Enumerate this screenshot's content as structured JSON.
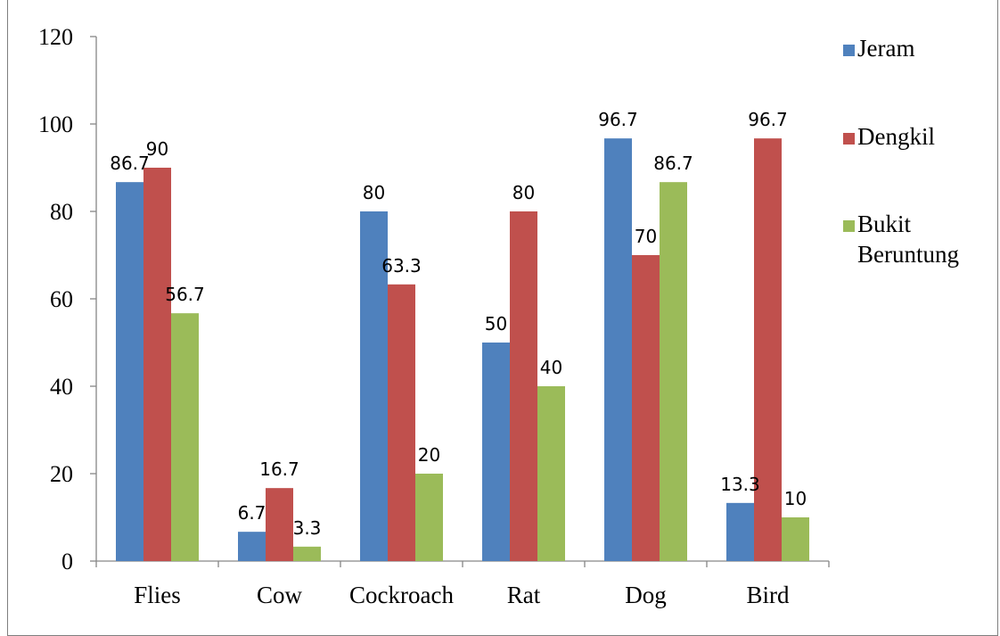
{
  "chart_data": {
    "type": "bar",
    "title": "",
    "xlabel": "",
    "ylabel": "",
    "categories": [
      "Flies",
      "Cow",
      "Cockroach",
      "Rat",
      "Dog",
      "Bird"
    ],
    "series": [
      {
        "name": "Jeram",
        "color": "#4f81bd",
        "values": [
          86.7,
          6.7,
          80,
          50,
          96.7,
          13.3
        ]
      },
      {
        "name": "Dengkil",
        "color": "#c0504d",
        "values": [
          90,
          16.7,
          63.3,
          80,
          70,
          96.7
        ]
      },
      {
        "name": "Bukit Beruntung",
        "name_lines": [
          "Bukit",
          "Beruntung"
        ],
        "color": "#9bbb59",
        "values": [
          56.7,
          3.3,
          20,
          40,
          86.7,
          10
        ]
      }
    ],
    "data_labels": [
      [
        "86.7",
        "6.7",
        "80",
        "50",
        "96.7",
        "13.3"
      ],
      [
        "90",
        "16.7",
        "63.3",
        "80",
        "70",
        "96.7"
      ],
      [
        "56.7",
        "3.3",
        "20",
        "40",
        "86.7",
        "10"
      ]
    ],
    "yticks": [
      0,
      20,
      40,
      60,
      80,
      100,
      120
    ],
    "ylim": [
      0,
      120
    ],
    "grid": false,
    "legend_position": "right"
  }
}
